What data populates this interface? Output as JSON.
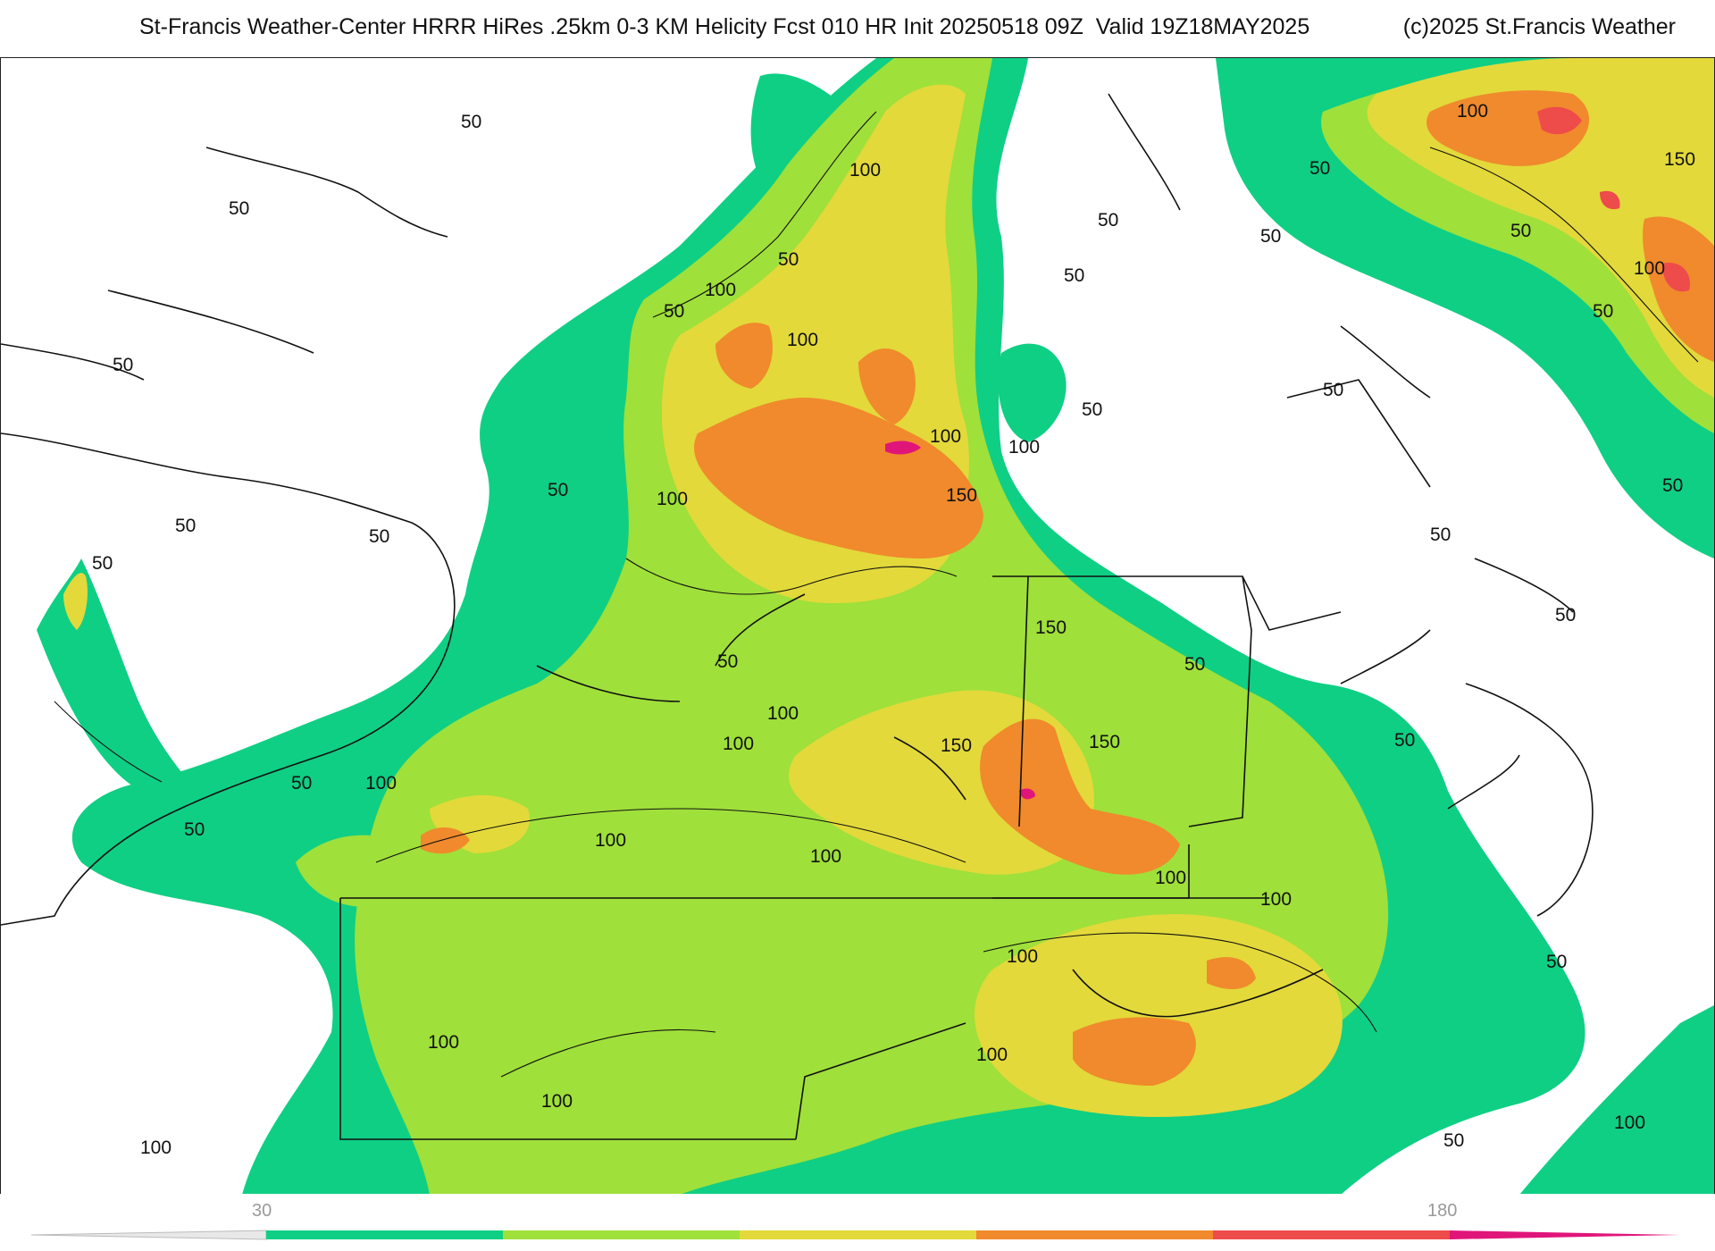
{
  "header": {
    "title": "St-Francis Weather-Center HRRR HiRes .25km 0-3 KM Helicity Fcst 010 HR Init 20250518 09Z  Valid 19Z18MAY2025",
    "copyright": "(c)2025 St.Francis Weather"
  },
  "map": {
    "field": "0-3 KM Helicity",
    "contour_labels": [
      "50",
      "100",
      "150"
    ],
    "fill_colors": {
      "level_1": "#0fcf84",
      "level_2": "#9fe03a",
      "level_3": "#e3d93a",
      "level_4": "#f08a2c",
      "level_5": "#ee4b4b",
      "level_6": "#e0157a"
    },
    "outline_color": "#111111",
    "county_line_color": "#9a9a9a"
  },
  "colorbar": {
    "tick_min": "30",
    "tick_max": "180",
    "segments": [
      "#0fcf84",
      "#9fe03a",
      "#e3d93a",
      "#f08a2c",
      "#ee4b4b",
      "#e0157a"
    ]
  }
}
